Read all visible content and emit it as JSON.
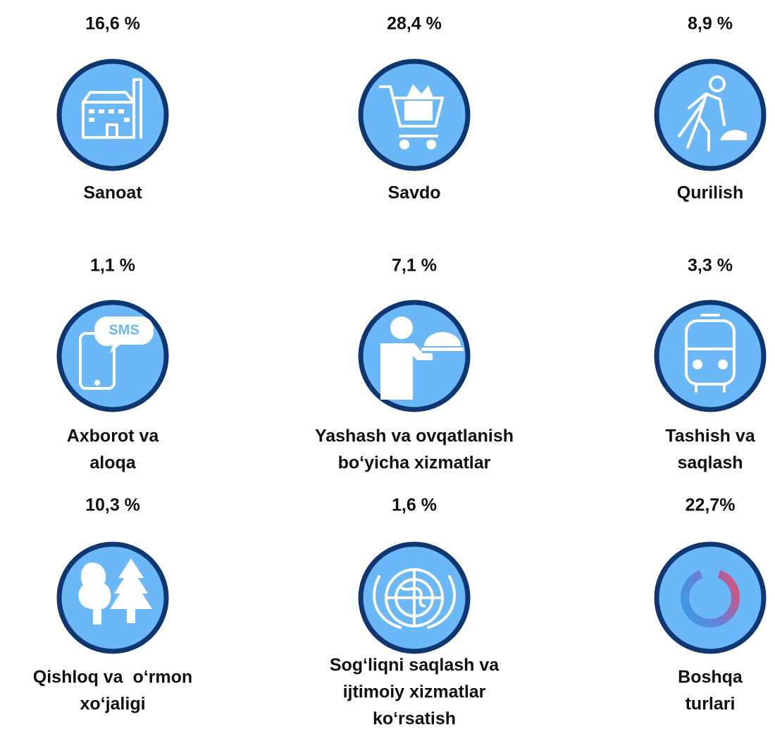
{
  "items": [
    {
      "value_label": "16,6 %",
      "label": [
        "Sanoat"
      ]
    },
    {
      "value_label": "28,4 %",
      "label": [
        "Savdo"
      ]
    },
    {
      "value_label": "8,9 %",
      "label": [
        "Qurilish"
      ]
    },
    {
      "value_label": "1,1 %",
      "label": [
        "Axborot va",
        "aloqa"
      ],
      "icon_text": "SMS"
    },
    {
      "value_label": "7,1 %",
      "label": [
        "Yashash va ovqatlanish",
        "bo‘yicha xizmatlar"
      ]
    },
    {
      "value_label": "3,3 %",
      "label": [
        "Tashish va",
        "saqlash"
      ]
    },
    {
      "value_label": "10,3 %",
      "label": [
        "Qishloq va  o‘rmon",
        "xo‘jaligi"
      ]
    },
    {
      "value_label": "1,6 %",
      "label": [
        "Sog‘liqni saqlash va",
        "ijtimoiy xizmatlar",
        "ko‘rsatish"
      ]
    },
    {
      "value_label": "22,7%",
      "label": [
        "Boshqa",
        "turlari"
      ]
    }
  ]
}
